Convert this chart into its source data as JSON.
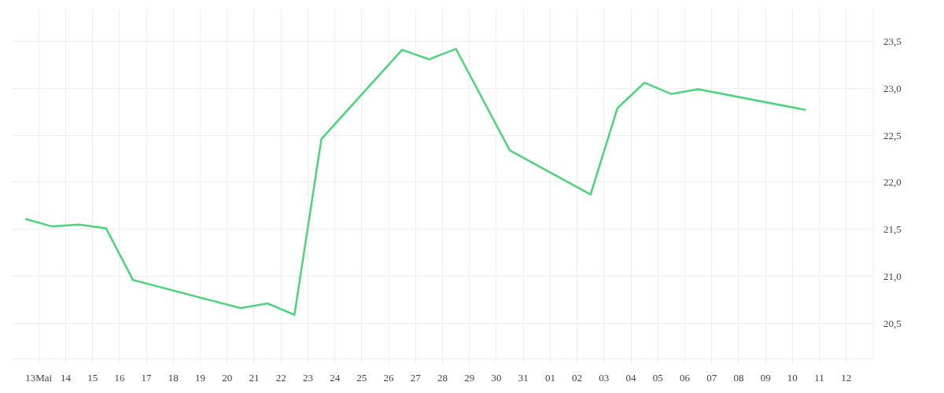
{
  "chart_data": {
    "type": "line",
    "x": [
      "--05-12T12:00",
      "--05-13T12:00",
      "--05-14T12:00",
      "--05-15T12:00",
      "--05-16T12:00",
      "--05-20T12:00",
      "--05-21T12:00",
      "--05-22T12:00",
      "--05-23T12:00",
      "--05-26T12:00",
      "--05-27T12:00",
      "--05-28T12:00",
      "--05-30T12:00",
      "--06-02T12:00",
      "--06-03T12:00",
      "--06-04T12:00",
      "--06-05T12:00",
      "--06-06T12:00",
      "--06-10T12:00"
    ],
    "series": [
      {
        "color": "#4cd47a",
        "values": [
          21.61,
          21.53,
          21.55,
          21.51,
          20.96,
          20.66,
          20.71,
          20.59,
          22.46,
          23.41,
          23.31,
          23.42,
          22.34,
          21.87,
          22.79,
          23.06,
          22.94,
          22.99,
          22.77
        ]
      }
    ],
    "xlim": [
      "--05-12",
      "--06-13"
    ],
    "xticks": [
      {
        "value": "--05-13",
        "label": "13Mai"
      },
      {
        "value": "--05-14",
        "label": "14"
      },
      {
        "value": "--05-15",
        "label": "15"
      },
      {
        "value": "--05-16",
        "label": "16"
      },
      {
        "value": "--05-17",
        "label": "17"
      },
      {
        "value": "--05-18",
        "label": "18"
      },
      {
        "value": "--05-19",
        "label": "19"
      },
      {
        "value": "--05-20",
        "label": "20"
      },
      {
        "value": "--05-21",
        "label": "21"
      },
      {
        "value": "--05-22",
        "label": "22"
      },
      {
        "value": "--05-23",
        "label": "23"
      },
      {
        "value": "--05-24",
        "label": "24"
      },
      {
        "value": "--05-25",
        "label": "25"
      },
      {
        "value": "--05-26",
        "label": "26"
      },
      {
        "value": "--05-27",
        "label": "27"
      },
      {
        "value": "--05-28",
        "label": "28"
      },
      {
        "value": "--05-29",
        "label": "29"
      },
      {
        "value": "--05-30",
        "label": "30"
      },
      {
        "value": "--05-31",
        "label": "31"
      },
      {
        "value": "--06-01",
        "label": "01"
      },
      {
        "value": "--06-02",
        "label": "02"
      },
      {
        "value": "--06-03",
        "label": "03"
      },
      {
        "value": "--06-04",
        "label": "04"
      },
      {
        "value": "--06-05",
        "label": "05"
      },
      {
        "value": "--06-06",
        "label": "06"
      },
      {
        "value": "--06-07",
        "label": "07"
      },
      {
        "value": "--06-08",
        "label": "08"
      },
      {
        "value": "--06-09",
        "label": "09"
      },
      {
        "value": "--06-10",
        "label": "10"
      },
      {
        "value": "--06-11",
        "label": "11"
      },
      {
        "value": "--06-12",
        "label": "12"
      }
    ],
    "ylim": [
      20.125,
      23.84
    ],
    "yticks": [
      {
        "value": 20.5,
        "label": "20,5"
      },
      {
        "value": 21,
        "label": "21,0"
      },
      {
        "value": 21.5,
        "label": "21,5"
      },
      {
        "value": 22,
        "label": "22,0"
      },
      {
        "value": 22.5,
        "label": "22,5"
      },
      {
        "value": 23,
        "label": "23,0"
      },
      {
        "value": 23.5,
        "label": "23,5"
      }
    ],
    "grid": true,
    "marker": "none",
    "line_style": "solid"
  }
}
